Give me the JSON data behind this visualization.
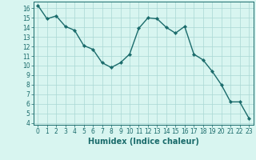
{
  "x": [
    0,
    1,
    2,
    3,
    4,
    5,
    6,
    7,
    8,
    9,
    10,
    11,
    12,
    13,
    14,
    15,
    16,
    17,
    18,
    19,
    20,
    21,
    22,
    23
  ],
  "y": [
    16.3,
    14.9,
    15.2,
    14.1,
    13.7,
    12.1,
    11.7,
    10.3,
    9.8,
    10.3,
    11.2,
    13.9,
    15.0,
    14.9,
    14.0,
    13.4,
    14.1,
    11.2,
    10.6,
    9.4,
    8.0,
    6.2,
    6.2,
    4.5
  ],
  "line_color": "#1a6b6b",
  "marker": "D",
  "marker_size": 2.2,
  "bg_color": "#d8f5f0",
  "grid_color": "#aad8d4",
  "xlabel": "Humidex (Indice chaleur)",
  "xlim": [
    -0.5,
    23.5
  ],
  "ylim": [
    3.8,
    16.7
  ],
  "yticks": [
    4,
    5,
    6,
    7,
    8,
    9,
    10,
    11,
    12,
    13,
    14,
    15,
    16
  ],
  "xticks": [
    0,
    1,
    2,
    3,
    4,
    5,
    6,
    7,
    8,
    9,
    10,
    11,
    12,
    13,
    14,
    15,
    16,
    17,
    18,
    19,
    20,
    21,
    22,
    23
  ],
  "tick_label_fontsize": 5.5,
  "xlabel_fontsize": 7.0,
  "line_width": 1.0
}
